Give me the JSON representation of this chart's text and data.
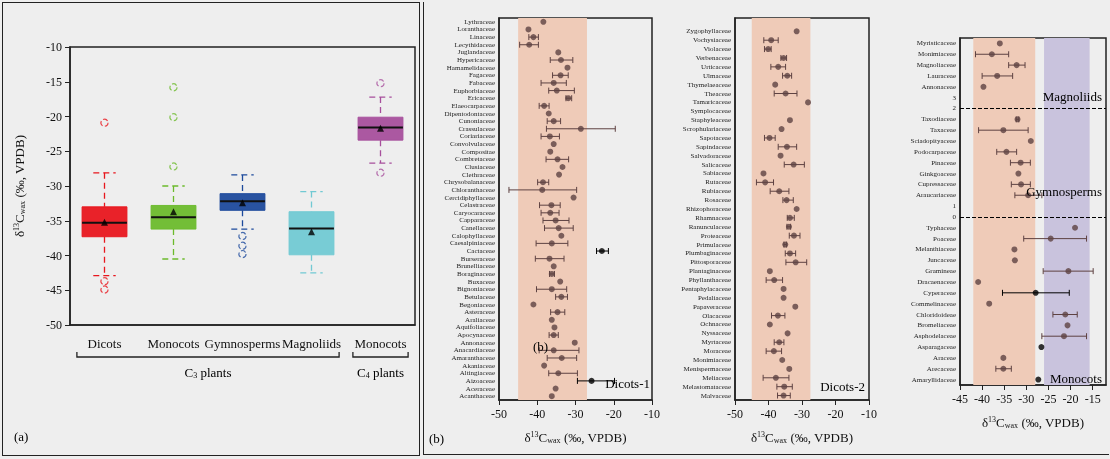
{
  "chart_data": [
    {
      "type": "box",
      "ylabel": "δ$^{13}$C$_{wax}$ (‰, VPDB)",
      "categories": [
        "Dicots",
        "Monocots",
        "Gymnosperms",
        "Magnoliids",
        "Monocots"
      ],
      "colors": [
        "#e8161d",
        "#6cba2c",
        "#1d4a9c",
        "#71c9d3",
        "#a74f9c"
      ],
      "ylim": [
        -50,
        -10
      ],
      "yticks": [
        -50,
        -45,
        -40,
        -35,
        -30,
        -25,
        -20,
        -15,
        -10
      ],
      "marker": "triangle",
      "boxes": [
        {
          "low": -42.9,
          "q1": -37.3,
          "median": -35.3,
          "q3": -33.0,
          "high": -28.1,
          "mean": -35.2,
          "outliers": [
            -20.9,
            -43.7,
            -44.9
          ]
        },
        {
          "low": -40.5,
          "q1": -36.2,
          "median": -34.5,
          "q3": -32.8,
          "high": -30.0,
          "mean": -33.7,
          "outliers": [
            -15.8,
            -20.1,
            -27.2
          ]
        },
        {
          "low": -36.2,
          "q1": -33.5,
          "median": -32.2,
          "q3": -31.1,
          "high": -28.4,
          "mean": -32.4,
          "outliers": [
            -37.2,
            -38.6,
            -39.8
          ]
        },
        {
          "low": -42.5,
          "q1": -39.9,
          "median": -36.1,
          "q3": -33.7,
          "high": -30.8,
          "mean": -36.6
        },
        {
          "low": -26.7,
          "q1": -23.4,
          "median": -21.6,
          "q3": -20.1,
          "high": -17.2,
          "mean": -21.7,
          "outliers": [
            -15.2,
            -28.1
          ]
        }
      ],
      "annotations": [
        "(a)",
        "C$_{3}$ plants",
        "C$_{4}$ plants"
      ]
    },
    {
      "type": "scatter",
      "orientation": "horizontal",
      "xlabel": "δ$^{13}$C$_{wax}$ (‰, VPDB)",
      "xlim": [
        -50,
        -10
      ],
      "xticks": [
        -50,
        -40,
        -30,
        -20,
        -10
      ],
      "marker": "circle",
      "bands": [
        {
          "axis": "x",
          "from": -45,
          "to": -27,
          "color": "#efcbb8"
        }
      ],
      "categories": [
        "Lythraceae",
        "Loranthaceae",
        "Linaceae",
        "Lecythidaceae",
        "Juglandaceae",
        "Hypericaceae",
        "Hamamelidaceae",
        "Fagaceae",
        "Fabaceae",
        "Euphorbiaceae",
        "Ericaceae",
        "Elaeocarpaceae",
        "Dipentodontaceae",
        "Cunoniaceae",
        "Crassulaceae",
        "Coriariaceae",
        "Convolvulaceae",
        "Compositae",
        "Combretaceae",
        "Clusiaceae",
        "Clethraceae",
        "Chrysobalanaceae",
        "Chloranthaceae",
        "Cercidiphyllaceae",
        "Celastraceae",
        "Caryocaraceae",
        "Capparaceae",
        "Canellaceae",
        "Calophyllaceae",
        "Caesalpiniaceae",
        "Cactaceae",
        "Burseraceae",
        "Brunelliaceae",
        "Boraginaceae",
        "Buxaceae",
        "Bignoniaceae",
        "Betulaceae",
        "Begoniaceae",
        "Asteraceae",
        "Araliaceae",
        "Aquifoliaceae",
        "Apocynaceae",
        "Annonaceae",
        "Anacardiaceae",
        "Amaranthaceae",
        "Akaniaceae",
        "Altingiaceae",
        "Aizoaceae",
        "Aceraceae",
        "Acanthaceae"
      ],
      "values": [
        -38.4,
        -42.3,
        -41.0,
        -42.1,
        -34.5,
        -33.8,
        -32.1,
        -33.9,
        -35.7,
        -34.9,
        -31.9,
        -38.2,
        -37.0,
        -35.7,
        -28.6,
        -36.7,
        -35.7,
        -36.6,
        -34.7,
        -33.4,
        -34.3,
        -38.5,
        -38.7,
        -30.5,
        -36.3,
        -36.6,
        -35.2,
        -34.4,
        -33.7,
        -36.2,
        -23.1,
        -36.8,
        -35.7,
        -36.2,
        -34.0,
        -36.2,
        -33.7,
        -41.0,
        -34.7,
        -36.2,
        -35.5,
        -35.7,
        -30.2,
        -35.7,
        -33.6,
        -38.2,
        -34.5,
        -25.8,
        -35.2,
        -36.2
      ],
      "errors": [
        null,
        null,
        [
          -42.2,
          -39.7
        ],
        [
          -44.6,
          -39.7
        ],
        null,
        [
          -36.6,
          -30.7
        ],
        null,
        [
          -36.0,
          -31.9
        ],
        [
          -39.0,
          -32.4
        ],
        [
          -37.0,
          -30.3
        ],
        [
          -32.5,
          -31.0
        ],
        [
          -39.5,
          -36.9
        ],
        null,
        [
          -37.4,
          -33.9
        ],
        [
          -37.6,
          -19.6
        ],
        [
          -39.0,
          -34.2
        ],
        null,
        null,
        [
          -37.7,
          -31.8
        ],
        null,
        null,
        [
          -39.9,
          -37.0
        ],
        [
          -47.4,
          -29.7
        ],
        null,
        [
          -39.4,
          -34.0
        ],
        [
          -39.0,
          -34.3
        ],
        [
          -38.5,
          -31.7
        ],
        [
          -38.1,
          -30.6
        ],
        null,
        [
          -40.3,
          -32.0
        ],
        [
          -24.5,
          -21.4
        ],
        [
          -40.5,
          -33.0
        ],
        null,
        [
          -36.8,
          -35.5
        ],
        null,
        [
          -40.2,
          -32.3
        ],
        [
          -35.2,
          -32.1
        ],
        null,
        [
          -36.5,
          -32.8
        ],
        null,
        null,
        [
          -36.9,
          -34.5
        ],
        null,
        [
          -39.5,
          -29.1
        ],
        [
          -37.4,
          -29.7
        ],
        null,
        [
          -37.0,
          -29.5
        ],
        [
          -29.5,
          -19.8
        ],
        null,
        null
      ],
      "colors": [
        "#5e4242",
        "#5e4242",
        "#5e4242",
        "#5e4242",
        "#5e4242",
        "#5e4242",
        "#5e4242",
        "#5e4242",
        "#5e4242",
        "#5e4242",
        "#5e4242",
        "#5e4242",
        "#5e4242",
        "#5e4242",
        "#5e4242",
        "#5e4242",
        "#5e4242",
        "#5e4242",
        "#5e4242",
        "#5e4242",
        "#5e4242",
        "#5e4242",
        "#5e4242",
        "#5e4242",
        "#5e4242",
        "#5e4242",
        "#5e4242",
        "#5e4242",
        "#5e4242",
        "#5e4242",
        "#000000",
        "#5e4242",
        "#5e4242",
        "#5e4242",
        "#5e4242",
        "#5e4242",
        "#5e4242",
        "#5e4242",
        "#5e4242",
        "#5e4242",
        "#5e4242",
        "#5e4242",
        "#5e4242",
        "#5e4242",
        "#5e4242",
        "#5e4242",
        "#5e4242",
        "#000000",
        "#5e4242",
        "#5e4242"
      ],
      "annotations": [
        "(b)",
        "Dicots-1",
        "(b)"
      ]
    },
    {
      "type": "scatter",
      "orientation": "horizontal",
      "xlabel": "δ$^{13}$C$_{wax}$ (‰, VPDB)",
      "xlim": [
        -50,
        -10
      ],
      "xticks": [
        -50,
        -40,
        -30,
        -20,
        -10
      ],
      "marker": "circle",
      "bands": [
        {
          "axis": "x",
          "from": -45,
          "to": -27.5,
          "color": "#efcbb8"
        }
      ],
      "categories": [
        null,
        "Zygophyllaceae",
        "Vochysiaceae",
        "Violaceae",
        "Verbenaceae",
        "Urticaceae",
        "Ulmaceae",
        "Thymelaeaceae",
        "Theaceae",
        "Tamaricaceae",
        "Symplocaceae",
        "Staphyleaceae",
        "Scrophulariaceae",
        "Sapotaceae",
        "Sapindaceae",
        "Salvadoraceae",
        "Salicaceae",
        "Sabiaceae",
        "Rutaceae",
        "Rubiaceae",
        "Rosaceae",
        "Rhizophoraceae",
        "Rhamnaceae",
        "Ranunculaceae",
        "Proteaceae",
        "Primulaceae",
        "Plumbaginaceae",
        "Pittosporaceae",
        "Plantaginaceae",
        "Phyllanthaceae",
        "Pentaphylacaceae",
        "Pedaliaceae",
        "Papaveraceae",
        "Olacaceae",
        "Ochnaceae",
        "Nyssaceae",
        "Myrtaceae",
        "Moraceae",
        "Monimiaceae",
        "Menispermaceae",
        "Meliaceae",
        "Melastomataceae",
        "Malvaceae"
      ],
      "values": [
        null,
        -31.6,
        -39.2,
        -40.1,
        -35.5,
        -37.1,
        -34.4,
        -38.0,
        -34.9,
        -28.2,
        null,
        -33.6,
        -36.1,
        -39.7,
        -34.5,
        -36.4,
        -32.5,
        -41.5,
        -41.0,
        -36.8,
        -34.6,
        -31.6,
        -33.6,
        -33.9,
        -32.4,
        -35.0,
        -33.6,
        -31.9,
        -39.6,
        -38.3,
        -35.5,
        -35.5,
        -32.0,
        -37.2,
        -39.6,
        -34.3,
        -36.8,
        -38.4,
        -35.9,
        -33.8,
        -37.8,
        -35.3,
        -35.5
      ],
      "errors": [
        null,
        null,
        [
          -41.4,
          -37.1
        ],
        [
          -41.2,
          -39.2
        ],
        [
          -36.3,
          -34.6
        ],
        [
          -39.3,
          -34.9
        ],
        [
          -35.8,
          -33.1
        ],
        null,
        [
          -38.3,
          -31.5
        ],
        null,
        null,
        null,
        null,
        [
          -41.2,
          -38.0
        ],
        [
          -37.1,
          -31.6
        ],
        null,
        [
          -35.3,
          -29.3
        ],
        null,
        [
          -43.6,
          -38.5
        ],
        [
          -39.5,
          -33.9
        ],
        [
          -35.7,
          -32.6
        ],
        null,
        [
          -34.4,
          -32.3
        ],
        [
          -34.5,
          -33.4
        ],
        [
          -33.8,
          -30.6
        ],
        [
          -35.4,
          -34.6
        ],
        [
          -35.0,
          -31.9
        ],
        [
          -34.8,
          -28.6
        ],
        null,
        [
          -40.7,
          -35.8
        ],
        null,
        null,
        null,
        [
          -39.1,
          -35.1
        ],
        null,
        null,
        [
          -38.3,
          -35.4
        ],
        [
          -40.7,
          -36.1
        ],
        null,
        null,
        [
          -41.6,
          -33.9
        ],
        [
          -37.5,
          -32.9
        ],
        [
          -37.3,
          -33.5
        ]
      ],
      "color": "#5e4242",
      "annotations": [
        "Dicots-2"
      ]
    },
    {
      "type": "scatter",
      "orientation": "horizontal",
      "xlabel": "δ$^{13}$C$_{wax}$ (‰, VPDB)",
      "xlim": [
        -45,
        -12
      ],
      "xticks": [
        -45,
        -40,
        -35,
        -30,
        -25,
        -20,
        -15
      ],
      "marker": "circle",
      "bands": [
        {
          "axis": "x",
          "from": -42,
          "to": -28,
          "color": "#efcbb8"
        },
        {
          "axis": "x",
          "from": -26,
          "to": -15.7,
          "color": "#c9c3dd"
        }
      ],
      "ref_lines": [
        {
          "axis": "y",
          "value": "2",
          "line_style": "dashed",
          "color": "#000000"
        },
        {
          "axis": "y",
          "value": "0",
          "line_style": "dashed",
          "color": "#000000"
        }
      ],
      "categories": [
        "Myristicaceae",
        "Monimiaceae",
        "Magnoliaceae",
        "Lauraceae",
        "Annonaceae",
        "3",
        "2",
        "Taxodiaceae",
        "Taxaceae",
        "Sciadopityaceae",
        "Podocarpaceae",
        "Pinaceae",
        "Ginkgoaceae",
        "Cupressaceae",
        "Araucariaceae",
        "1",
        "0",
        "Typhaceae",
        "Poaceae",
        "Melanthiaceae",
        "Juncaceae",
        "Gramineae",
        "Dracaenaceae",
        "Cyperaceae",
        "Commelinaceae",
        "Chloridoideae",
        "Bromeliaceae",
        "Asphodelaceae",
        "Asparagaceae",
        "Araceae",
        "Arecaceae",
        "Amaryllidaceae"
      ],
      "values": [
        -36.0,
        -37.8,
        -32.2,
        -36.6,
        -39.7,
        null,
        null,
        -32.0,
        -35.2,
        -29.0,
        -34.5,
        -31.3,
        -31.8,
        -31.2,
        -29.6,
        null,
        null,
        -19.0,
        -24.5,
        -32.7,
        -32.6,
        -20.5,
        -40.9,
        -27.9,
        -38.4,
        -21.2,
        -20.7,
        -21.5,
        -26.6,
        -35.2,
        -35.2,
        -27.3
      ],
      "errors": [
        null,
        [
          -41.5,
          -34.0
        ],
        [
          -34.0,
          -30.3
        ],
        [
          -40.0,
          -33.1
        ],
        null,
        null,
        null,
        [
          -32.3,
          -31.7
        ],
        [
          -40.8,
          -29.6
        ],
        null,
        [
          -36.7,
          -32.2
        ],
        [
          -33.6,
          -29.1
        ],
        null,
        [
          -33.4,
          -29.1
        ],
        [
          -32.6,
          -26.5
        ],
        null,
        null,
        null,
        [
          -30.6,
          -16.4
        ],
        null,
        null,
        [
          -26.2,
          -14.9
        ],
        null,
        [
          -35.4,
          -20.3
        ],
        null,
        [
          -24.0,
          -18.5
        ],
        null,
        [
          -26.5,
          -16.4
        ],
        null,
        null,
        [
          -36.9,
          -33.4
        ],
        null
      ],
      "colors": [
        "#5e4242",
        "#5e4242",
        "#5e4242",
        "#5e4242",
        "#5e4242",
        null,
        null,
        "#5e4242",
        "#5e4242",
        "#5e4242",
        "#5e4242",
        "#5e4242",
        "#5e4242",
        "#5e4242",
        "#5e4242",
        null,
        null,
        "#5e4242",
        "#5e4242",
        "#5e4242",
        "#5e4242",
        "#5e4242",
        "#5e4242",
        "#000000",
        "#5e4242",
        "#5e4242",
        "#5e4242",
        "#5e4242",
        "#000000",
        "#5e4242",
        "#5e4242",
        "#000000"
      ],
      "annotations": [
        "Magnoliids",
        "Gymnosperms",
        "Monocots"
      ]
    }
  ]
}
